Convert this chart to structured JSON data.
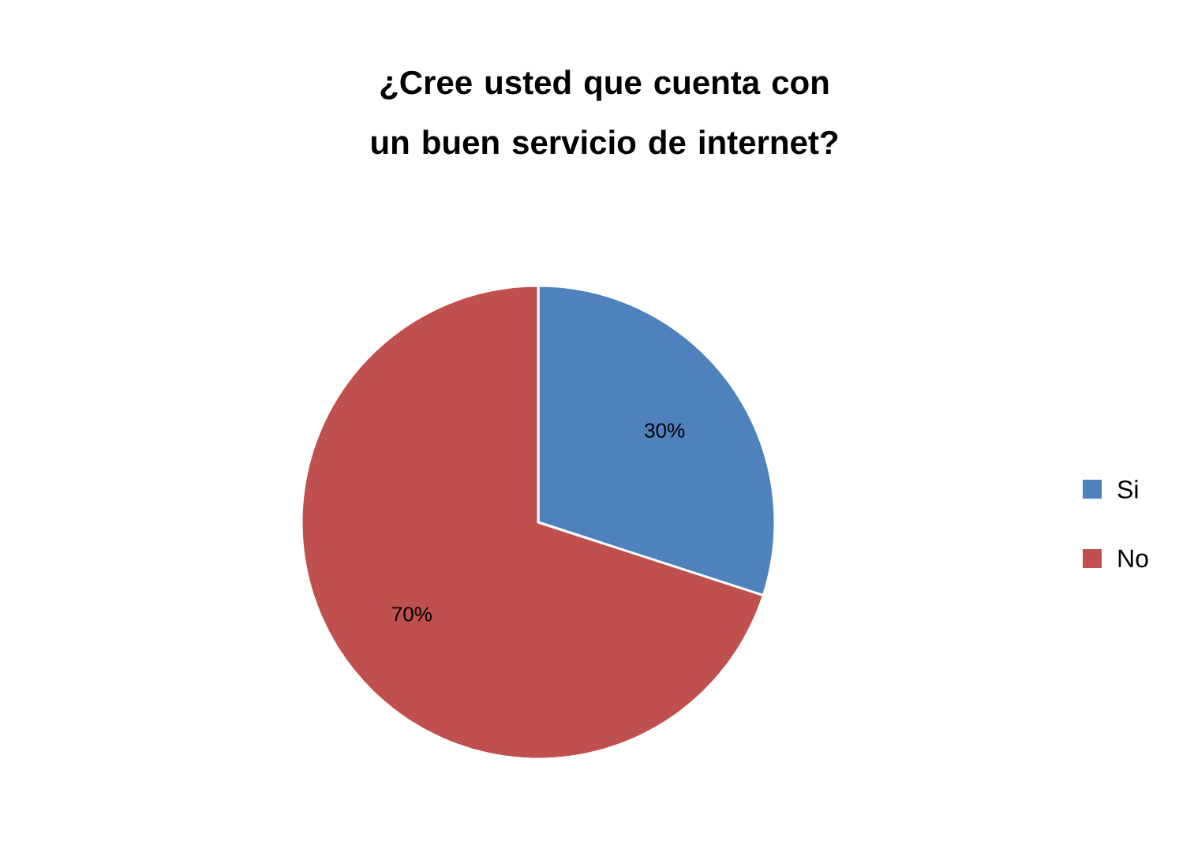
{
  "chart_data": {
    "type": "pie",
    "title": "¿Cree usted que cuenta con un buen servicio de internet?",
    "categories": [
      "Si",
      "No"
    ],
    "values": [
      30,
      70
    ],
    "value_labels": [
      "30%",
      "70%"
    ],
    "colors": [
      "#4f81bd",
      "#c0504d"
    ],
    "legend": "right"
  }
}
